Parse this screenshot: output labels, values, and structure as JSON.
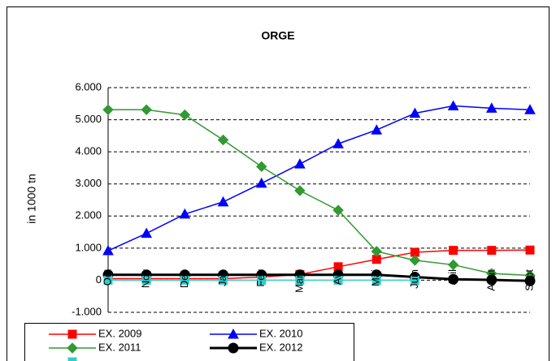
{
  "chart_data": {
    "type": "line",
    "title": "ORGE",
    "y_label": "in 1000 tn",
    "categories": [
      "Oct",
      "Nov",
      "Dec",
      "Jan",
      "Fev",
      "Mars",
      "Avr",
      "Mai",
      "Juin",
      "Juil",
      "Aout",
      "Sept"
    ],
    "series": [
      {
        "name": "EX.  2009",
        "color": "#ff0000",
        "marker": "square",
        "values": [
          50,
          50,
          50,
          50,
          100,
          180,
          420,
          650,
          870,
          930,
          930,
          940
        ]
      },
      {
        "name": "EX.  2010",
        "color": "#0000ff",
        "marker": "triangle",
        "values": [
          920,
          1460,
          2060,
          2440,
          3020,
          3620,
          4250,
          4680,
          5200,
          5430,
          5360,
          5310
        ]
      },
      {
        "name": "EX.  2011",
        "color": "#339933",
        "marker": "diamond",
        "values": [
          5310,
          5310,
          5150,
          4370,
          3540,
          2790,
          2180,
          900,
          620,
          480,
          210,
          150
        ]
      },
      {
        "name": "EX.  2012",
        "color": "#000000",
        "marker": "circle",
        "values": [
          170,
          170,
          170,
          170,
          170,
          170,
          170,
          170,
          100,
          30,
          10,
          -20
        ]
      },
      {
        "color": "#33cccc",
        "marker": "square",
        "values": [
          0,
          0,
          0,
          0,
          0,
          0,
          0,
          0,
          0,
          null,
          null,
          null
        ]
      }
    ],
    "ylim": [
      -1000,
      6000
    ],
    "yticks": [
      {
        "value": -1000,
        "label": "-1.000"
      },
      0,
      {
        "value": 1000,
        "label": "1.000"
      },
      {
        "value": 2000,
        "label": "2.000"
      },
      {
        "value": 3000,
        "label": "3.000"
      },
      {
        "value": 4000,
        "label": "4.000"
      },
      {
        "value": 5000,
        "label": "5.000"
      },
      {
        "value": 6000,
        "label": "6.000"
      }
    ],
    "grid": true
  }
}
